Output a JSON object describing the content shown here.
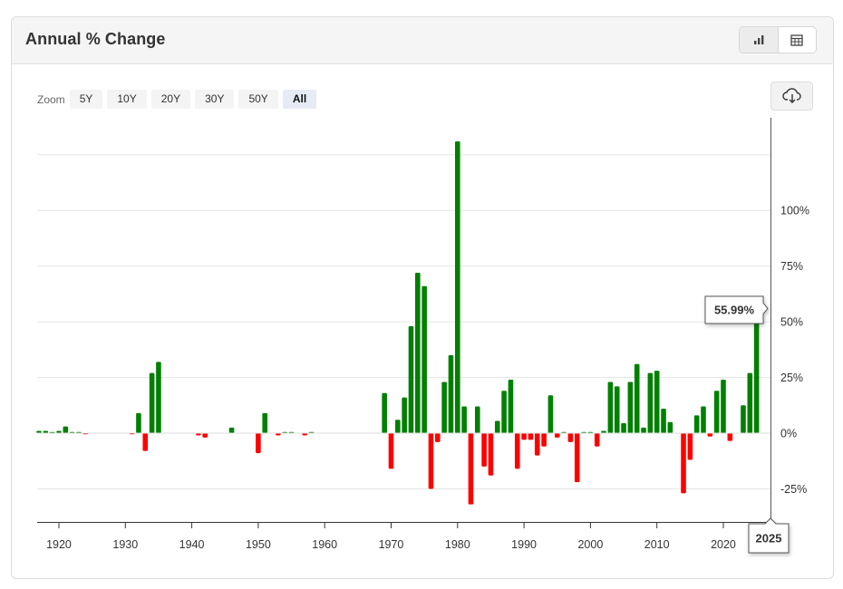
{
  "header": {
    "title": "Annual % Change"
  },
  "view_toggle": {
    "chart_icon": "bar-chart-icon",
    "table_icon": "table-icon"
  },
  "zoom": {
    "label": "Zoom",
    "options": [
      "5Y",
      "10Y",
      "20Y",
      "30Y",
      "50Y",
      "All"
    ],
    "selected": "All"
  },
  "download": {
    "icon": "cloud-download-icon"
  },
  "tooltip": {
    "value": "55.99%",
    "year": "2025"
  },
  "colors": {
    "positive": "#008000",
    "negative": "#ff0000",
    "grid": "#e6e6e6",
    "axis": "#333333"
  },
  "chart_data": {
    "type": "bar",
    "title": "Annual % Change",
    "xlabel": "",
    "ylabel": "",
    "x_ticks": [
      "1920",
      "1930",
      "1940",
      "1950",
      "1960",
      "1970",
      "1980",
      "1990",
      "2000",
      "2010",
      "2020"
    ],
    "y_ticks": [
      "-25%",
      "0%",
      "25%",
      "50%",
      "75%",
      "100%"
    ],
    "xlim": [
      1917,
      2025
    ],
    "ylim": [
      -40,
      132
    ],
    "grid": true,
    "years": [
      1917,
      1918,
      1919,
      1920,
      1921,
      1922,
      1923,
      1924,
      1925,
      1926,
      1927,
      1928,
      1929,
      1930,
      1931,
      1932,
      1933,
      1934,
      1935,
      1936,
      1937,
      1938,
      1939,
      1940,
      1941,
      1942,
      1943,
      1944,
      1945,
      1946,
      1947,
      1948,
      1949,
      1950,
      1951,
      1952,
      1953,
      1954,
      1955,
      1956,
      1957,
      1958,
      1959,
      1960,
      1961,
      1962,
      1963,
      1964,
      1965,
      1966,
      1967,
      1968,
      1969,
      1970,
      1971,
      1972,
      1973,
      1974,
      1975,
      1976,
      1977,
      1978,
      1979,
      1980,
      1981,
      1982,
      1983,
      1984,
      1985,
      1986,
      1987,
      1988,
      1989,
      1990,
      1991,
      1992,
      1993,
      1994,
      1995,
      1996,
      1997,
      1998,
      1999,
      2000,
      2001,
      2002,
      2003,
      2004,
      2005,
      2006,
      2007,
      2008,
      2009,
      2010,
      2011,
      2012,
      2013,
      2014,
      2015,
      2016,
      2017,
      2018,
      2019,
      2020,
      2021,
      2022,
      2023,
      2024,
      2025
    ],
    "values": [
      1,
      1,
      0.5,
      1,
      3,
      0.5,
      0.5,
      -0.5,
      0,
      0,
      0,
      0,
      0,
      0,
      -0.5,
      9,
      -8,
      27,
      32,
      0,
      0,
      0,
      0,
      0,
      -1,
      -2,
      0,
      0,
      0,
      2.5,
      0,
      0,
      0,
      -9,
      9,
      0,
      -1,
      0.5,
      0.5,
      0,
      -1,
      0.5,
      0,
      0,
      0,
      0,
      0,
      0,
      0,
      0,
      0,
      0,
      18,
      -16,
      6,
      16,
      48,
      72,
      66,
      -25,
      -4,
      23,
      35,
      131,
      12,
      -32,
      12,
      -15,
      -19,
      5.5,
      19,
      24,
      -16,
      -3,
      -3,
      -10,
      -6,
      17,
      -2,
      0.5,
      -4,
      -22,
      0.5,
      0.5,
      -6,
      1,
      23,
      21,
      4.5,
      23,
      31,
      2.5,
      27,
      28,
      11,
      5,
      0,
      -27,
      -12,
      8,
      12,
      -1.5,
      19,
      24,
      -3.5,
      0,
      12.5,
      27,
      55.99
    ]
  }
}
